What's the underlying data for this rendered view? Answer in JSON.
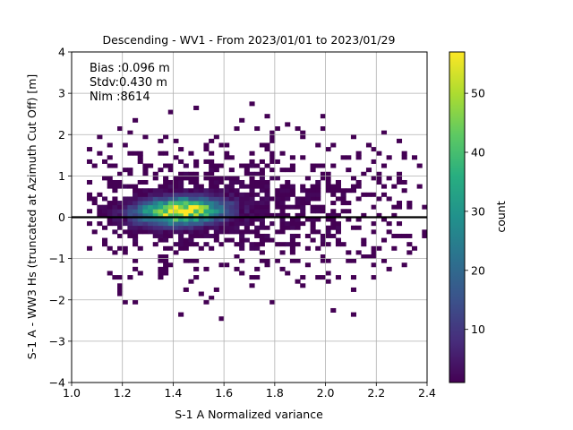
{
  "chart_data": {
    "type": "heatmap",
    "title": "Descending - WV1 - From 2023/01/01 to 2023/01/29",
    "xlabel": "S-1 A Normalized variance",
    "ylabel": "S-1 A - WW3 Hs (truncated at Azimuth Cut Off) [m]",
    "xlim": [
      1.0,
      2.4
    ],
    "ylim": [
      -4,
      4
    ],
    "x_ticks": [
      "1.0",
      "1.2",
      "1.4",
      "1.6",
      "1.8",
      "2.0",
      "2.2",
      "2.4"
    ],
    "y_ticks": [
      "−4",
      "−3",
      "−2",
      "−1",
      "0",
      "1",
      "2",
      "3",
      "4"
    ],
    "grid": true,
    "reference_line_y": 0,
    "annotations": [
      "Bias :0.096 m",
      "Stdv:0.430 m",
      "Nim :8614"
    ],
    "colorbar": {
      "label": "count",
      "range": [
        1,
        57
      ],
      "ticks": [
        "10",
        "20",
        "30",
        "40",
        "50"
      ],
      "colormap": "viridis"
    },
    "density_model": {
      "center": [
        1.42,
        0.1
      ],
      "spread": [
        0.11,
        0.2
      ],
      "peak_count": 57,
      "total_points": 8614
    }
  }
}
